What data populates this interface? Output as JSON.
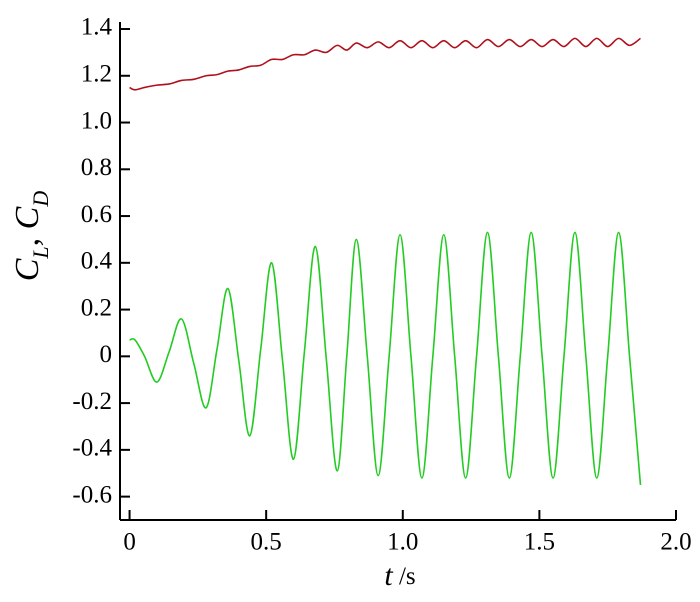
{
  "chart_data": {
    "type": "line",
    "xlabel": "t /s",
    "ylabel": "CL, CD",
    "x": [
      0,
      0.02,
      0.055,
      0.1,
      0.145,
      0.19,
      0.235,
      0.28,
      0.32,
      0.36,
      0.4,
      0.44,
      0.48,
      0.52,
      0.56,
      0.6,
      0.64,
      0.68,
      0.72,
      0.76,
      0.795,
      0.83,
      0.87,
      0.91,
      0.95,
      0.99,
      1.03,
      1.07,
      1.11,
      1.15,
      1.19,
      1.23,
      1.27,
      1.31,
      1.35,
      1.39,
      1.43,
      1.47,
      1.51,
      1.55,
      1.59,
      1.63,
      1.67,
      1.71,
      1.75,
      1.79,
      1.83,
      1.87
    ],
    "series": [
      {
        "color": "#b0101c",
        "values": [
          1.15,
          1.14,
          1.15,
          1.16,
          1.165,
          1.18,
          1.185,
          1.2,
          1.205,
          1.22,
          1.225,
          1.24,
          1.245,
          1.27,
          1.27,
          1.29,
          1.29,
          1.31,
          1.3,
          1.33,
          1.31,
          1.34,
          1.32,
          1.345,
          1.32,
          1.35,
          1.32,
          1.35,
          1.32,
          1.35,
          1.32,
          1.35,
          1.32,
          1.355,
          1.325,
          1.355,
          1.325,
          1.355,
          1.325,
          1.355,
          1.325,
          1.36,
          1.325,
          1.36,
          1.325,
          1.36,
          1.33,
          1.36
        ]
      },
      {
        "color": "#22cc22",
        "values": [
          0.07,
          0.07,
          0,
          -0.11,
          0.02,
          0.16,
          -0.03,
          -0.22,
          0.03,
          0.29,
          -0.02,
          -0.34,
          0.03,
          0.4,
          -0.02,
          -0.44,
          0.02,
          0.47,
          -0.01,
          -0.49,
          0,
          0.5,
          0,
          -0.51,
          0,
          0.52,
          0,
          -0.52,
          0,
          0.52,
          0,
          -0.52,
          0,
          0.53,
          0,
          -0.52,
          0,
          0.53,
          0,
          -0.52,
          0,
          0.53,
          0,
          -0.52,
          0,
          0.53,
          0,
          -0.55
        ]
      }
    ],
    "xlim": [
      -0.035,
      2.0
    ],
    "xticks": [
      0,
      0.5,
      {
        "value": 1,
        "label": "1.0"
      },
      1.5,
      {
        "value": 2,
        "label": "2.0"
      }
    ],
    "ylim": [
      -0.7,
      1.43
    ],
    "yticks": [
      -0.6,
      -0.4,
      -0.2,
      0,
      0.2,
      0.4,
      0.6,
      0.8,
      {
        "value": 1,
        "label": "1.0"
      },
      1.2,
      1.4
    ],
    "grid": false
  }
}
